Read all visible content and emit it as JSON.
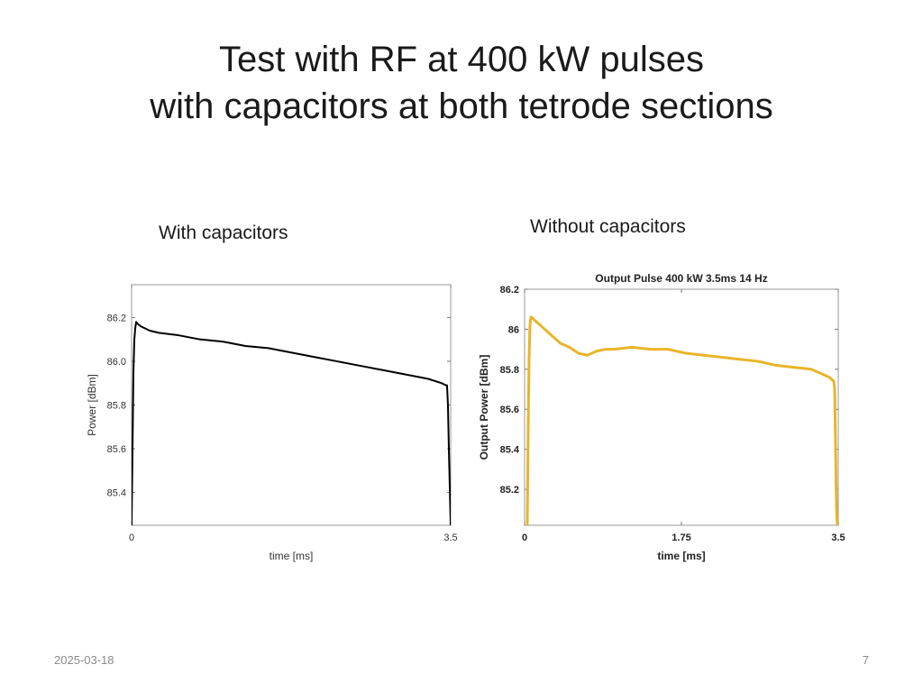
{
  "slide": {
    "title_line1": "Test with RF at 400 kW pulses",
    "title_line2": "with capacitors at both tetrode sections",
    "footer_date": "2025-03-18",
    "page_number": "7"
  },
  "chart_data": [
    {
      "type": "line",
      "caption": "With capacitors",
      "title": "",
      "xlabel": "time [ms]",
      "ylabel": "Power [dBm]",
      "xlim": [
        0,
        3.5
      ],
      "ylim": [
        85.25,
        86.35
      ],
      "xticks": [
        0,
        3.5
      ],
      "xtick_labels": [
        "0",
        "3.5"
      ],
      "yticks": [
        85.4,
        85.6,
        85.8,
        86.0,
        86.2
      ],
      "ytick_labels": [
        "85.4",
        "85.6",
        "85.8",
        "86.0",
        "86.2"
      ],
      "grid": false,
      "color": "#000000",
      "series": [
        {
          "x": [
            0.0,
            0.01,
            0.02,
            0.03,
            0.04,
            0.05,
            0.07,
            0.1,
            0.2,
            0.3,
            0.5,
            0.75,
            1.0,
            1.25,
            1.5,
            1.75,
            2.0,
            2.25,
            2.5,
            2.75,
            3.0,
            3.25,
            3.4,
            3.45,
            3.46,
            3.47,
            3.48,
            3.5
          ],
          "y": [
            85.25,
            85.6,
            85.95,
            86.1,
            86.15,
            86.18,
            86.17,
            86.16,
            86.14,
            86.13,
            86.12,
            86.1,
            86.09,
            86.07,
            86.06,
            86.04,
            86.02,
            86.0,
            85.98,
            85.96,
            85.94,
            85.92,
            85.9,
            85.89,
            85.89,
            85.8,
            85.6,
            85.25
          ]
        }
      ]
    },
    {
      "type": "line",
      "caption": "Without capacitors",
      "title": "Output Pulse 400 kW 3.5ms 14 Hz",
      "xlabel": "time [ms]",
      "ylabel": "Output Power [dBm]",
      "xlim": [
        0,
        3.5
      ],
      "ylim": [
        85.02,
        86.2
      ],
      "xticks": [
        0,
        1.75,
        3.5
      ],
      "xtick_labels": [
        "0",
        "1.75",
        "3.5"
      ],
      "yticks": [
        85.2,
        85.4,
        85.6,
        85.8,
        86.0,
        86.2
      ],
      "ytick_labels": [
        "85.2",
        "85.4",
        "85.6",
        "85.8",
        "86",
        "86.2"
      ],
      "grid": false,
      "color": "#E8B52A",
      "series": [
        {
          "x": [
            0.03,
            0.04,
            0.05,
            0.06,
            0.07,
            0.08,
            0.1,
            0.15,
            0.2,
            0.3,
            0.4,
            0.5,
            0.6,
            0.7,
            0.8,
            0.9,
            1.0,
            1.2,
            1.4,
            1.6,
            1.8,
            2.0,
            2.2,
            2.4,
            2.6,
            2.8,
            3.0,
            3.2,
            3.3,
            3.4,
            3.45,
            3.46,
            3.47,
            3.48,
            3.49
          ],
          "y": [
            85.02,
            85.5,
            85.85,
            86.02,
            86.06,
            86.06,
            86.05,
            86.03,
            86.01,
            85.97,
            85.93,
            85.91,
            85.88,
            85.87,
            85.89,
            85.9,
            85.9,
            85.91,
            85.9,
            85.9,
            85.88,
            85.87,
            85.86,
            85.85,
            85.84,
            85.82,
            85.81,
            85.8,
            85.78,
            85.76,
            85.74,
            85.7,
            85.4,
            85.1,
            85.02
          ]
        }
      ]
    }
  ]
}
